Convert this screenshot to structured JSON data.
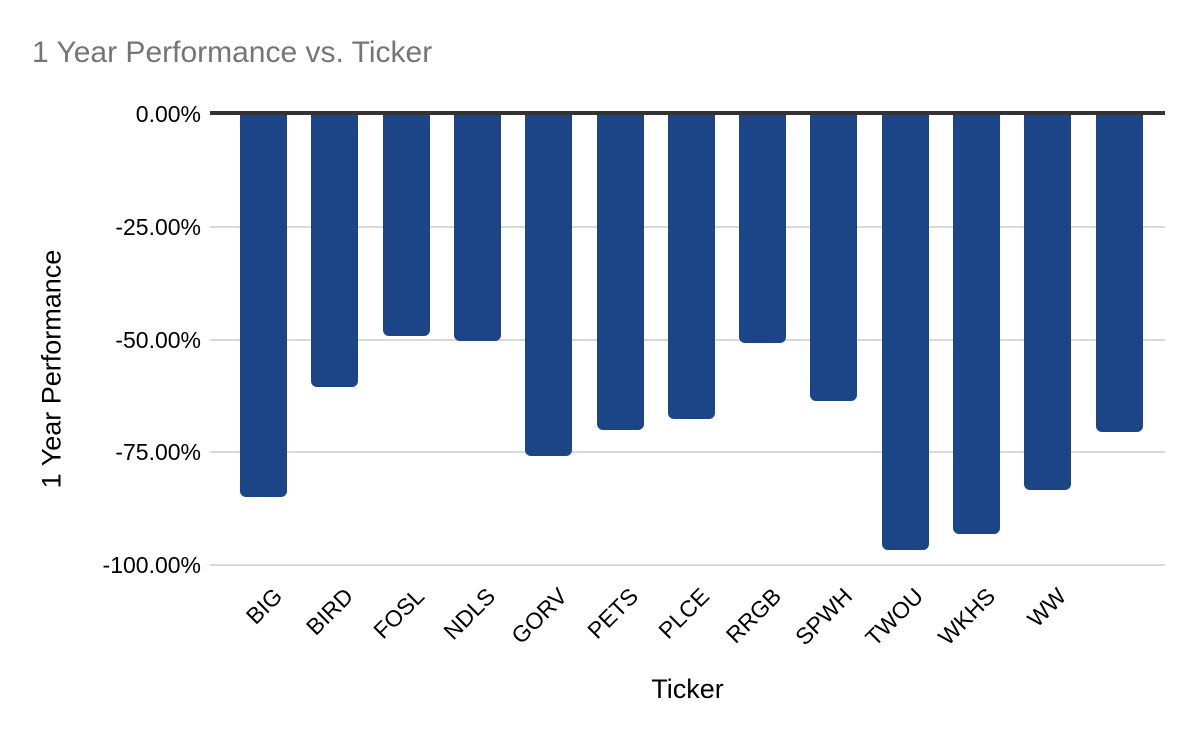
{
  "chart_data": {
    "type": "bar",
    "title": "1 Year Performance vs. Ticker",
    "xlabel": "Ticker",
    "ylabel": "1 Year Performance",
    "categories": [
      "BIG",
      "BIRD",
      "FOSL",
      "NDLS",
      "GORV",
      "PETS",
      "PLCE",
      "RRGB",
      "SPWH",
      "TWOU",
      "WKHS",
      "WW",
      ""
    ],
    "values": [
      -84.9,
      -60.5,
      -49.2,
      -50.3,
      -75.8,
      -70.1,
      -67.6,
      -50.8,
      -63.6,
      -96.7,
      -93.1,
      -83.4,
      -70.5
    ],
    "value_unit": "%",
    "ylim": [
      -100,
      0
    ],
    "yticks": [
      {
        "value": 0,
        "label": "0.00%"
      },
      {
        "value": -25,
        "label": "-25.00%"
      },
      {
        "value": -50,
        "label": "-50.00%"
      },
      {
        "value": -75,
        "label": "-75.00%"
      },
      {
        "value": -100,
        "label": "-100.00%"
      }
    ],
    "grid": true,
    "legend": "none",
    "x_labels_rotation_deg": -45,
    "colors": {
      "bar": "#1c4587",
      "title_text": "#757575",
      "axis_text": "#000000",
      "gridline": "#d9d9d9",
      "zero_line": "#333333",
      "background": "#ffffff"
    }
  }
}
